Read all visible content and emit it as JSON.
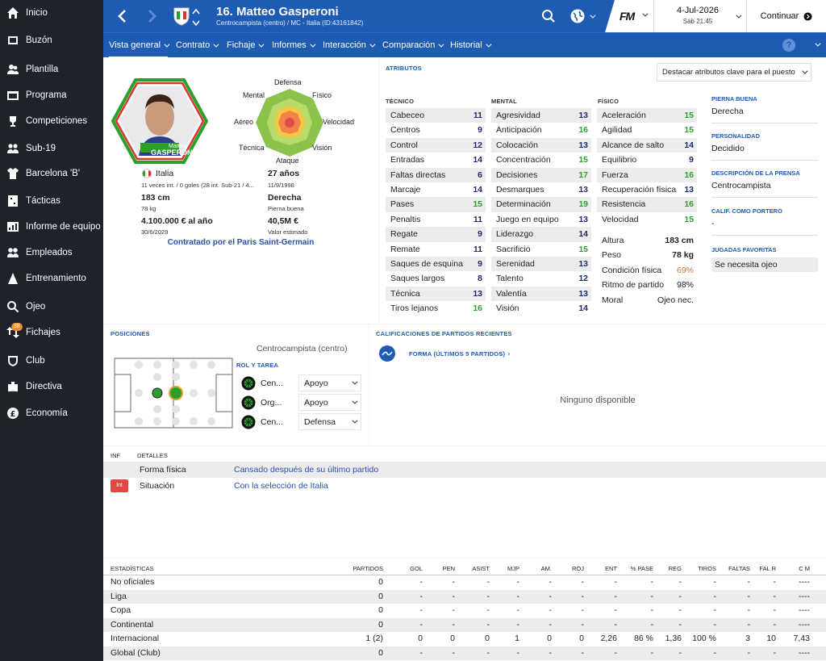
{
  "sidebar": {
    "items": [
      {
        "label": "Inicio",
        "icon": "home-icon"
      },
      {
        "label": "Buzón",
        "icon": "inbox-icon"
      },
      {
        "label": "Plantilla",
        "icon": "squad-icon"
      },
      {
        "label": "Programa",
        "icon": "schedule-icon"
      },
      {
        "label": "Competiciones",
        "icon": "trophy-icon"
      },
      {
        "label": "Sub-19",
        "icon": "youth-icon"
      },
      {
        "label": "Barcelona 'B'",
        "icon": "shirt-icon"
      },
      {
        "label": "Tácticas",
        "icon": "tactics-icon"
      },
      {
        "label": "Informe de equipo",
        "icon": "report-icon"
      },
      {
        "label": "Empleados",
        "icon": "staff-icon"
      },
      {
        "label": "Entrenamiento",
        "icon": "training-icon"
      },
      {
        "label": "Ojeo",
        "icon": "search-icon"
      },
      {
        "label": "Fichajes",
        "icon": "transfer-icon",
        "badge": "38"
      },
      {
        "label": "Club",
        "icon": "club-icon"
      },
      {
        "label": "Directiva",
        "icon": "board-icon"
      },
      {
        "label": "Economía",
        "icon": "finance-icon"
      }
    ]
  },
  "header": {
    "title": "16. Matteo Gasperoni",
    "subtitle": "Centrocampista (centro) / MC - Italia (ID:43161842)",
    "fm_logo": "FM",
    "date": "4-Jul-2026",
    "time": "Sáb 21:45",
    "continue_label": "Continuar"
  },
  "nav": {
    "tabs": [
      "Vista general",
      "Contrato",
      "Fichaje",
      "Informes",
      "Interacción",
      "Comparación",
      "Historial"
    ]
  },
  "profile": {
    "card_first": "Matteo",
    "card_last": "GASPERONI",
    "nationality": "Italia",
    "caps": "11 veces int. / 0 goles (28 int. Sub-21 / 4...",
    "age": "27 años",
    "dob": "11/9/1998",
    "height": "183 cm",
    "weight": "78 kg",
    "foot": "Derecha",
    "foot_label": "Pierna buena",
    "wage": "4.100.000 € al año",
    "contract_end": "30/6/2029",
    "value": "40,5M €",
    "value_label": "Valor estimado",
    "contracted": "Contratado por el Paris Saint-Germain"
  },
  "radar": {
    "labels": {
      "defensa": "Defensa",
      "fisico": "Físico",
      "velocidad": "Velocidad",
      "vision": "Visión",
      "ataque": "Ataque",
      "tecnica": "Técnica",
      "aereo": "Aéreo",
      "mental": "Mental"
    }
  },
  "attributes": {
    "section_title": "Atributos",
    "highlight_label": "Destacar atributos clave para el puesto",
    "tecnico": {
      "title": "Técnico",
      "rows": [
        {
          "name": "Cabeceo",
          "value": "11",
          "green": false
        },
        {
          "name": "Centros",
          "value": "9",
          "green": false
        },
        {
          "name": "Control",
          "value": "12",
          "green": false
        },
        {
          "name": "Entradas",
          "value": "14",
          "green": false
        },
        {
          "name": "Faltas directas",
          "value": "6",
          "green": false
        },
        {
          "name": "Marcaje",
          "value": "14",
          "green": false
        },
        {
          "name": "Pases",
          "value": "15",
          "green": true
        },
        {
          "name": "Penaltis",
          "value": "11",
          "green": false
        },
        {
          "name": "Regate",
          "value": "9",
          "green": false
        },
        {
          "name": "Remate",
          "value": "11",
          "green": false
        },
        {
          "name": "Saques de esquina",
          "value": "9",
          "green": false
        },
        {
          "name": "Saques largos",
          "value": "8",
          "green": false
        },
        {
          "name": "Técnica",
          "value": "13",
          "green": false
        },
        {
          "name": "Tiros lejanos",
          "value": "16",
          "green": true
        }
      ]
    },
    "mental": {
      "title": "Mental",
      "rows": [
        {
          "name": "Agresividad",
          "value": "13",
          "green": false
        },
        {
          "name": "Anticipación",
          "value": "16",
          "green": true
        },
        {
          "name": "Colocación",
          "value": "13",
          "green": false
        },
        {
          "name": "Concentración",
          "value": "15",
          "green": true
        },
        {
          "name": "Decisiones",
          "value": "17",
          "green": true
        },
        {
          "name": "Desmarques",
          "value": "13",
          "green": false
        },
        {
          "name": "Determinación",
          "value": "19",
          "green": true
        },
        {
          "name": "Juego en equipo",
          "value": "13",
          "green": false
        },
        {
          "name": "Liderazgo",
          "value": "14",
          "green": false
        },
        {
          "name": "Sacrificio",
          "value": "15",
          "green": true
        },
        {
          "name": "Serenidad",
          "value": "13",
          "green": false
        },
        {
          "name": "Talento",
          "value": "12",
          "green": false
        },
        {
          "name": "Valentía",
          "value": "13",
          "green": false
        },
        {
          "name": "Visión",
          "value": "14",
          "green": false
        }
      ]
    },
    "fisico": {
      "title": "Físico",
      "rows": [
        {
          "name": "Aceleración",
          "value": "15",
          "green": true
        },
        {
          "name": "Agilidad",
          "value": "15",
          "green": true
        },
        {
          "name": "Alcance de salto",
          "value": "14",
          "green": false
        },
        {
          "name": "Equilibrio",
          "value": "9",
          "green": false
        },
        {
          "name": "Fuerza",
          "value": "16",
          "green": true
        },
        {
          "name": "Recuperación física",
          "value": "13",
          "green": false
        },
        {
          "name": "Resistencia",
          "value": "16",
          "green": true
        },
        {
          "name": "Velocidad",
          "value": "15",
          "green": true
        }
      ]
    },
    "extra": [
      {
        "name": "Altura",
        "value": "183 cm"
      },
      {
        "name": "Peso",
        "value": "78 kg"
      },
      {
        "name": "Condición física",
        "value": "69%"
      },
      {
        "name": "Ritmo de partido",
        "value": "98%"
      },
      {
        "name": "Moral",
        "value": "Ojeo nec."
      }
    ]
  },
  "right_info": [
    {
      "label": "Pierna buena",
      "value": "Derecha"
    },
    {
      "label": "Personalidad",
      "value": "Decidido"
    },
    {
      "label": "Descripción de la prensa",
      "value": "Centrocampista"
    },
    {
      "label": "Calif. como portero",
      "value": "-"
    },
    {
      "label": "Jugadas favoritas",
      "value": "Se necesita ojeo"
    }
  ],
  "positions": {
    "title": "Posiciones",
    "position_name": "Centrocampista (centro)",
    "role_title": "Rol y tarea",
    "roles": [
      {
        "role": "Cen...",
        "duty": "Apoyo"
      },
      {
        "role": "Org...",
        "duty": "Apoyo"
      },
      {
        "role": "Cen...",
        "duty": "Defensa"
      }
    ]
  },
  "recent": {
    "title": "Calificaciones de partidos recientes",
    "form_label": "Forma (últimos 5 partidos)",
    "empty": "Ninguno disponible"
  },
  "info_table": {
    "col1": "Inf",
    "col2": "Detalles",
    "rows": [
      {
        "badge": "",
        "name": "Forma física",
        "detail": "Cansado después de su último partido"
      },
      {
        "badge": "Int",
        "name": "Situación",
        "detail": "Con la selección de Italia"
      }
    ]
  },
  "stats": {
    "title": "Estadísticas",
    "headers": [
      "Partidos",
      "Gol",
      "Pen",
      "Asist",
      "MJP",
      "Am.",
      "Roj",
      "Ent",
      "% Pase",
      "Reg",
      "Tiros",
      "Faltas",
      "Fal R",
      "C M"
    ],
    "rows": [
      {
        "name": "No oficiales",
        "values": [
          "0",
          "-",
          "-",
          "-",
          "-",
          "-",
          "-",
          "-",
          "-",
          "-",
          "-",
          "-",
          "-",
          "----"
        ]
      },
      {
        "name": "Liga",
        "values": [
          "0",
          "-",
          "-",
          "-",
          "-",
          "-",
          "-",
          "-",
          "-",
          "-",
          "-",
          "-",
          "-",
          "----"
        ]
      },
      {
        "name": "Copa",
        "values": [
          "0",
          "-",
          "-",
          "-",
          "-",
          "-",
          "-",
          "-",
          "-",
          "-",
          "-",
          "-",
          "-",
          "----"
        ]
      },
      {
        "name": "Continental",
        "values": [
          "0",
          "-",
          "-",
          "-",
          "-",
          "-",
          "-",
          "-",
          "-",
          "-",
          "-",
          "-",
          "-",
          "----"
        ]
      },
      {
        "name": "Internacional",
        "values": [
          "1 (2)",
          "0",
          "0",
          "0",
          "1",
          "0",
          "0",
          "2,26",
          "86 %",
          "1,36",
          "100 %",
          "3",
          "10",
          "7,43"
        ]
      },
      {
        "name": "Global (Club)",
        "values": [
          "0",
          "-",
          "-",
          "-",
          "-",
          "-",
          "-",
          "-",
          "-",
          "-",
          "-",
          "-",
          "-",
          "----"
        ]
      }
    ]
  },
  "colors": {
    "brand": "#1e5cb4",
    "sidebar": "#1e222b",
    "green": "#2aa02a",
    "value_blue": "#1b2a6e",
    "badge_red": "#e04848"
  }
}
